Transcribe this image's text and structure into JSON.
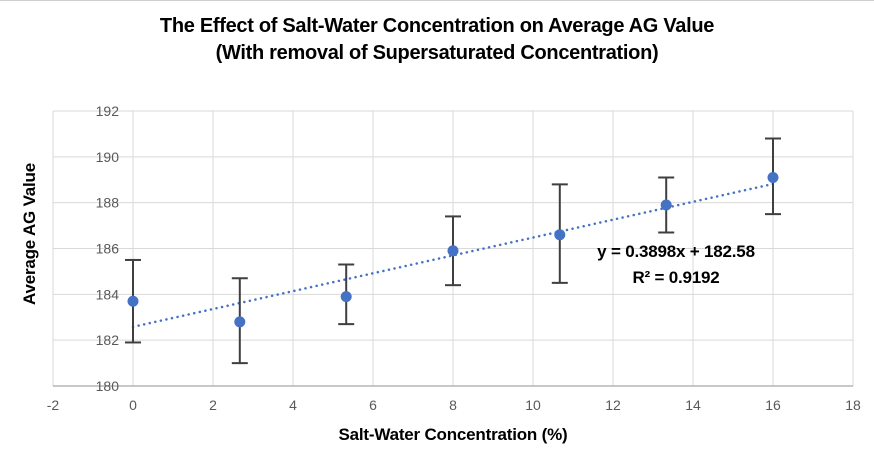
{
  "chart_data": {
    "type": "scatter",
    "title": "The Effect of Salt-Water Concentration on Average AG Value",
    "subtitle": "(With removal of Supersaturated Concentration)",
    "xlabel": "Salt-Water Concentration (%)",
    "ylabel": "Average AG Value",
    "xlim": [
      -2,
      18
    ],
    "ylim": [
      180,
      192
    ],
    "x_ticks": [
      -2,
      0,
      2,
      4,
      6,
      8,
      10,
      12,
      14,
      16,
      18
    ],
    "y_ticks": [
      180,
      182,
      184,
      186,
      188,
      190,
      192
    ],
    "grid": true,
    "legend_position": "none",
    "series": [
      {
        "name": "Average AG Value",
        "points": [
          {
            "x": 0,
            "y": 183.7,
            "err_low": 181.9,
            "err_high": 185.5
          },
          {
            "x": 2.67,
            "y": 182.8,
            "err_low": 181.0,
            "err_high": 184.7
          },
          {
            "x": 5.33,
            "y": 183.9,
            "err_low": 182.7,
            "err_high": 185.3
          },
          {
            "x": 8,
            "y": 185.9,
            "err_low": 184.4,
            "err_high": 187.4
          },
          {
            "x": 10.67,
            "y": 186.6,
            "err_low": 184.5,
            "err_high": 188.8
          },
          {
            "x": 13.33,
            "y": 187.9,
            "err_low": 186.7,
            "err_high": 189.1
          },
          {
            "x": 16,
            "y": 189.1,
            "err_low": 187.5,
            "err_high": 190.8
          }
        ]
      }
    ],
    "trendline": {
      "type": "linear",
      "slope": 0.3898,
      "intercept": 182.58,
      "x_start": 0,
      "x_end": 16,
      "equation_label": "y = 0.3898x + 182.58",
      "r_squared_label": "R² = 0.9192",
      "style": "dotted"
    },
    "colors": {
      "marker": "#4472C4",
      "trendline": "#4472C4",
      "error_bar": "#3f3f3f",
      "gridline": "#d9d9d9",
      "axis_line": "#a6a6a6",
      "tick_label": "#595959",
      "title_text": "#000000"
    }
  }
}
